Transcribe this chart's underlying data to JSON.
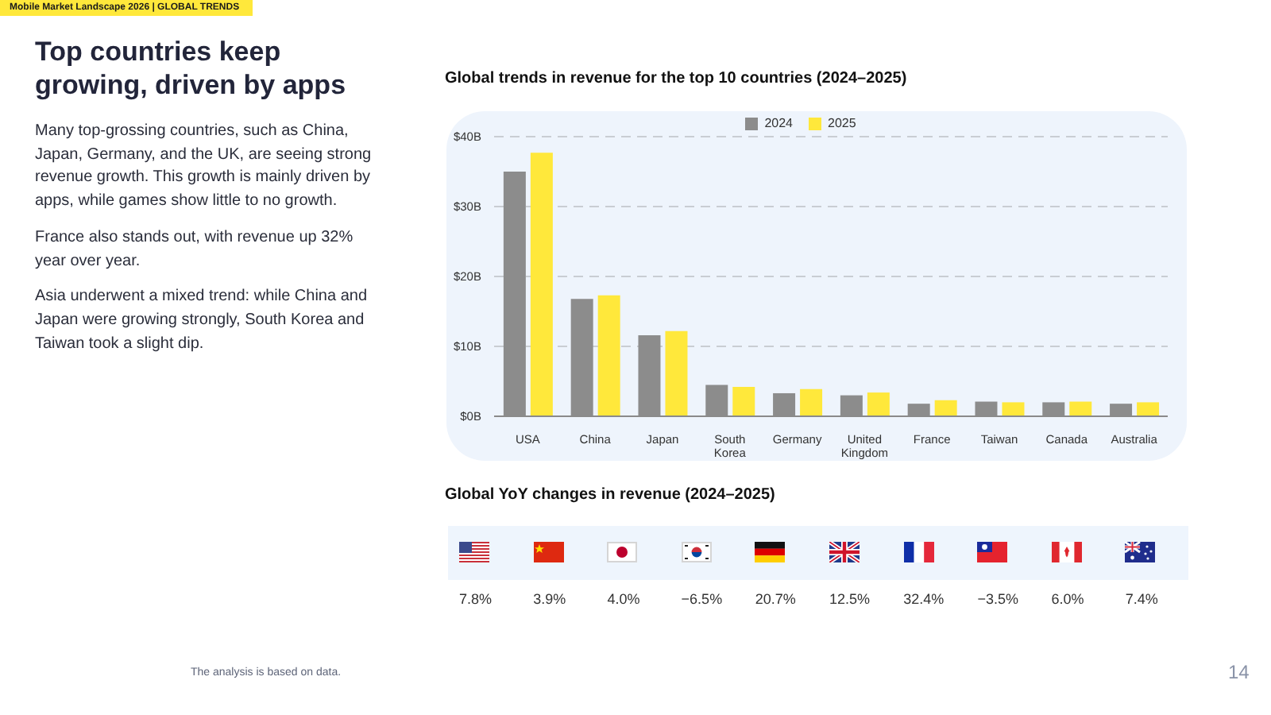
{
  "chart_data": [
    {
      "type": "other",
      "title": "Top countries keep growing, driven by apps",
      "annotations": [
        "Mobile Market Landscape 2026 | GLOBAL TRENDS",
        "Many top-grossing countries, such as China, Japan, Germany, and the UK, are seeing strong revenue growth. This growth is mainly driven by apps, while games show little to no growth.",
        "France also stands out, with revenue up 32% year over year.",
        "Asia underwent a mixed trend: while China and Japan were growing strongly, South Korea and Taiwan took a slight dip.",
        "The analysis is based on data.",
        "14"
      ]
    },
    {
      "type": "bar",
      "title": "Global trends in revenue for the top 10 countries (2024–2025)",
      "categories": [
        "USA",
        "China",
        "Japan",
        "South Korea",
        "Germany",
        "United Kingdom",
        "France",
        "Taiwan",
        "Canada",
        "Australia"
      ],
      "series": [
        {
          "name": "2024",
          "color": "#8c8c8c",
          "values": [
            35.0,
            16.8,
            11.6,
            4.5,
            3.3,
            3.0,
            1.8,
            2.1,
            2.0,
            1.8
          ]
        },
        {
          "name": "2025",
          "color": "#ffe83b",
          "values": [
            37.7,
            17.3,
            12.2,
            4.2,
            3.9,
            3.4,
            2.3,
            2.0,
            2.1,
            2.0
          ]
        }
      ],
      "ylim": [
        0,
        40
      ],
      "yticks": [
        {
          "value": 0,
          "label": "$0B"
        },
        {
          "value": 10,
          "label": "$10B"
        },
        {
          "value": 20,
          "label": "$20B"
        },
        {
          "value": 30,
          "label": "$30B"
        },
        {
          "value": 40,
          "label": "$40B"
        }
      ],
      "grid": "y",
      "legend": "top"
    },
    {
      "type": "other",
      "title": "Global YoY changes in revenue (2024–2025)",
      "annotations": [
        "7.8%",
        "3.9%",
        "4.0%",
        "−6.5%",
        "20.7%",
        "12.5%",
        "32.4%",
        "−3.5%",
        "6.0%",
        "7.4%"
      ]
    }
  ]
}
